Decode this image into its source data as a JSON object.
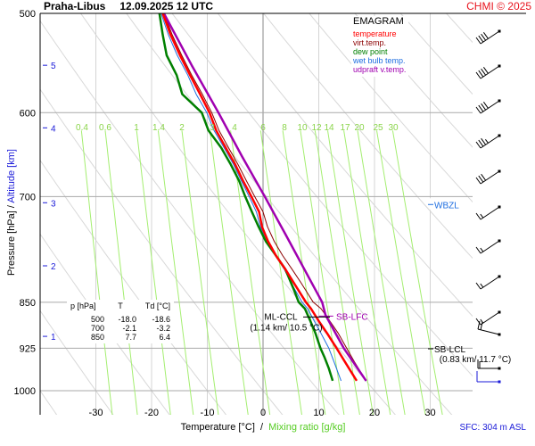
{
  "header": {
    "station": "Praha-Libus",
    "datetime": "12.09.2025 12 UTC",
    "credit": "CHMI © 2025"
  },
  "axes": {
    "ylabel_pressure": "Pressure [hPa]",
    "ylabel_sep": " / ",
    "ylabel_altitude": "Altitude [km]",
    "xlabel_temperature": "Temperature [°C]",
    "xlabel_sep": "  /  ",
    "xlabel_mixing": "Mixing ratio [g/kg]",
    "surface": "SFC: 304 m ASL"
  },
  "legend": {
    "title": "EMAGRAM",
    "items": [
      {
        "label": "temperature",
        "color": "#ff0000"
      },
      {
        "label": "virt.temp.",
        "color": "#8b0000"
      },
      {
        "label": "dew point",
        "color": "#008000"
      },
      {
        "label": "wet bulb temp.",
        "color": "#1e6ee0"
      },
      {
        "label": "udpraft v.temp.",
        "color": "#a000b0"
      }
    ]
  },
  "summary_table": {
    "headers": [
      "p [hPa]",
      "T",
      "Td [°C]"
    ],
    "rows": [
      [
        "500",
        "-18.0",
        "-18.6"
      ],
      [
        "700",
        "-2.1",
        "-3.2"
      ],
      [
        "850",
        "7.7",
        "6.4"
      ]
    ]
  },
  "chart_data": {
    "type": "line",
    "title": "Praha-Libus 12.09.2025 12 UTC",
    "subtitle": "EMAGRAM",
    "xlabel": "Temperature [°C] / Mixing ratio [g/kg]",
    "ylabel": "Pressure [hPa] / Altitude [km]",
    "xlim": [
      -40,
      45
    ],
    "ylim": [
      1000,
      500
    ],
    "yscale": "log",
    "grid": true,
    "legend_position": "top-right",
    "x_ticks": [
      "-30",
      "-20",
      "-10",
      "0",
      "10",
      "20",
      "30"
    ],
    "x_tick_values": [
      -30,
      -20,
      -10,
      0,
      10,
      20,
      30
    ],
    "y_ticks": [
      "500",
      "600",
      "700",
      "850",
      "925",
      "1000"
    ],
    "y_tick_values": [
      500,
      600,
      700,
      850,
      925,
      1000
    ],
    "altitude_ticks": [
      {
        "label": "1",
        "p": 905
      },
      {
        "label": "2",
        "p": 795
      },
      {
        "label": "3",
        "p": 708
      },
      {
        "label": "4",
        "p": 617
      },
      {
        "label": "5",
        "p": 550
      }
    ],
    "mixing_ratio_labels": [
      "0.4",
      "0.6",
      "1",
      "1.4",
      "2",
      "3",
      "4",
      "6",
      "8",
      "10",
      "12",
      "14",
      "17",
      "20",
      "25",
      "30"
    ],
    "mixing_ratio_values": [
      0.4,
      0.6,
      1,
      1.4,
      2,
      3,
      4,
      6,
      8,
      10,
      12,
      14,
      17,
      20,
      25,
      30
    ],
    "series": [
      {
        "name": "temperature",
        "color": "#ff0000",
        "p": [
          982,
          950,
          925,
          900,
          880,
          860,
          850,
          820,
          800,
          780,
          760,
          740,
          720,
          700,
          680,
          660,
          640,
          620,
          600,
          580,
          560,
          540,
          520,
          500
        ],
        "t": [
          16.8,
          14.8,
          13.2,
          11.5,
          10.0,
          8.6,
          7.7,
          5.5,
          4.0,
          2.3,
          0.9,
          -0.2,
          -0.7,
          -2.1,
          -3.6,
          -5.0,
          -6.7,
          -8.4,
          -9.6,
          -11.3,
          -13.1,
          -14.9,
          -16.6,
          -18.0
        ]
      },
      {
        "name": "virt.temp.",
        "color": "#8b0000",
        "p": [
          982,
          950,
          925,
          900,
          880,
          860,
          850,
          820,
          800,
          780,
          760,
          740,
          720,
          700,
          680,
          660,
          640,
          620,
          600,
          580,
          560,
          540,
          520,
          500
        ],
        "t": [
          18.5,
          16.5,
          15.0,
          13.5,
          12.0,
          10.4,
          9.0,
          6.8,
          5.2,
          3.5,
          2.0,
          0.8,
          0.0,
          -1.5,
          -3.0,
          -4.5,
          -6.2,
          -7.9,
          -9.2,
          -10.9,
          -12.8,
          -14.6,
          -16.3,
          -17.8
        ]
      },
      {
        "name": "dew point",
        "color": "#008000",
        "p": [
          982,
          960,
          940,
          925,
          900,
          880,
          860,
          850,
          830,
          820,
          800,
          780,
          760,
          740,
          720,
          700,
          680,
          660,
          640,
          620,
          600,
          580,
          560,
          540,
          520,
          500
        ],
        "t": [
          12.5,
          11.8,
          11.0,
          10.3,
          9.4,
          8.5,
          7.5,
          6.4,
          5.5,
          5.0,
          4.0,
          2.3,
          0.5,
          -0.8,
          -2.0,
          -3.2,
          -4.3,
          -5.8,
          -7.5,
          -9.8,
          -11.0,
          -14.5,
          -15.5,
          -17.3,
          -18.0,
          -18.6
        ]
      },
      {
        "name": "wet bulb temp.",
        "color": "#1e6ee0",
        "p": [
          982,
          950,
          925,
          900,
          880,
          860,
          850,
          820,
          800,
          780,
          760,
          740,
          720,
          700,
          680,
          660,
          640,
          620,
          600,
          580,
          560,
          540,
          520,
          500
        ],
        "t": [
          14.0,
          12.8,
          11.8,
          10.4,
          9.2,
          8.0,
          7.0,
          5.0,
          3.8,
          2.2,
          0.8,
          -0.5,
          -1.2,
          -2.5,
          -3.9,
          -5.3,
          -7.0,
          -8.8,
          -10.1,
          -12.0,
          -13.5,
          -15.4,
          -17.0,
          -18.3
        ]
      },
      {
        "name": "udpraft v.temp.",
        "color": "#a000b0",
        "p": [
          982,
          925,
          880,
          870,
          850,
          800,
          750,
          700,
          650,
          600,
          550,
          500
        ],
        "t": [
          18.5,
          14.5,
          11.8,
          11.2,
          10.6,
          7.4,
          4.0,
          0.3,
          -3.8,
          -8.0,
          -12.8,
          -17.8
        ]
      }
    ],
    "annotations": [
      {
        "label": "SB-LFC",
        "p": 872,
        "t": 11.0,
        "color": "#a000b0"
      },
      {
        "label": "ML-CCL",
        "detail": "(1.14 km/ 10.5 °C)",
        "p": 872,
        "t": 10.5,
        "color": "#000000"
      },
      {
        "label": "SB-LCL",
        "detail": "(0.83 km/ 11.7 °C)",
        "p": 905,
        "t": 11.7,
        "color": "#000000"
      },
      {
        "label": "WBZL",
        "p": 708,
        "color": "#1e6ee0"
      }
    ],
    "wind_barbs": [
      {
        "p": 500,
        "speed_kt": 40,
        "dir": "SW"
      },
      {
        "p": 550,
        "speed_kt": 40,
        "dir": "SW"
      },
      {
        "p": 600,
        "speed_kt": 40,
        "dir": "SW"
      },
      {
        "p": 650,
        "speed_kt": 35,
        "dir": "SW"
      },
      {
        "p": 700,
        "speed_kt": 30,
        "dir": "SW"
      },
      {
        "p": 750,
        "speed_kt": 15,
        "dir": "SW"
      },
      {
        "p": 800,
        "speed_kt": 15,
        "dir": "SW"
      },
      {
        "p": 850,
        "speed_kt": 15,
        "dir": "SW"
      },
      {
        "p": 900,
        "speed_kt": 15,
        "dir": "SW"
      },
      {
        "p": 880,
        "speed_kt": 15,
        "dir": "W"
      },
      {
        "p": 950,
        "speed_kt": 10,
        "dir": "W"
      },
      {
        "p": 982,
        "speed_kt": 5,
        "dir": "W",
        "surface": true
      }
    ]
  }
}
